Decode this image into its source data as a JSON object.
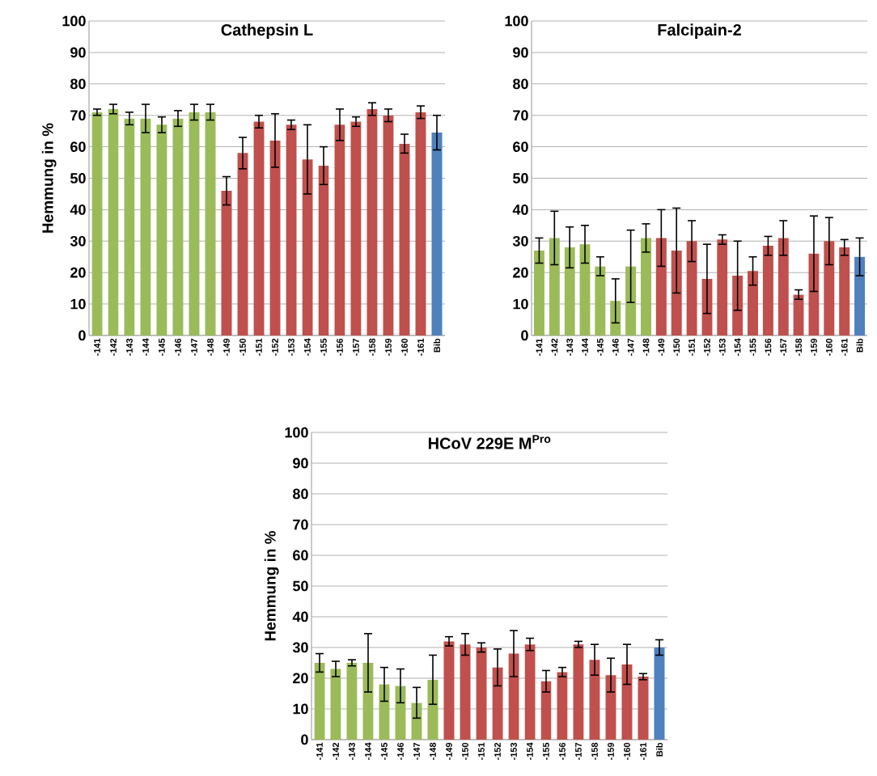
{
  "chart_data": [
    {
      "type": "bar",
      "title": "Cathepsin L",
      "ylabel": "Hemmung in %",
      "categories": [
        "-141",
        "-142",
        "-143",
        "-144",
        "-145",
        "-146",
        "-147",
        "-148",
        "-149",
        "-150",
        "-151",
        "-152",
        "-153",
        "-154",
        "-155",
        "-156",
        "-157",
        "-158",
        "-159",
        "-160",
        "-161",
        "Bib"
      ],
      "values": [
        71,
        72,
        69,
        69,
        67,
        69,
        71,
        71,
        46,
        58,
        68,
        62,
        67,
        56,
        54,
        67,
        68,
        72,
        70,
        61,
        71,
        64.5
      ],
      "errors": [
        1,
        1.5,
        2,
        4.5,
        2.5,
        2.5,
        2.5,
        2.5,
        4.5,
        5,
        2,
        8.5,
        1.5,
        11,
        6,
        5,
        1.5,
        2,
        2,
        3,
        2,
        5.5
      ],
      "colors": [
        "#9bbb59",
        "#9bbb59",
        "#9bbb59",
        "#9bbb59",
        "#9bbb59",
        "#9bbb59",
        "#9bbb59",
        "#9bbb59",
        "#c0504d",
        "#c0504d",
        "#c0504d",
        "#c0504d",
        "#c0504d",
        "#c0504d",
        "#c0504d",
        "#c0504d",
        "#c0504d",
        "#c0504d",
        "#c0504d",
        "#c0504d",
        "#c0504d",
        "#4f81bd"
      ],
      "ylim": [
        0,
        100
      ],
      "yticks": [
        0,
        10,
        20,
        30,
        40,
        50,
        60,
        70,
        80,
        90,
        100
      ],
      "grid": "y"
    },
    {
      "type": "bar",
      "title": "Falcipain-2",
      "categories": [
        "-141",
        "-142",
        "-143",
        "-144",
        "-145",
        "-146",
        "-147",
        "-148",
        "-149",
        "-150",
        "-151",
        "-152",
        "-153",
        "-154",
        "-155",
        "-156",
        "-157",
        "-158",
        "-159",
        "-160",
        "-161",
        "Bib"
      ],
      "values": [
        27,
        31,
        28,
        29,
        22,
        11,
        22,
        31,
        31,
        27,
        30,
        18,
        30.5,
        19,
        20.5,
        28.5,
        31,
        13,
        26,
        30,
        28,
        25
      ],
      "errors": [
        4,
        8.5,
        6.5,
        6,
        3,
        7,
        11.5,
        4.5,
        9,
        13.5,
        6.5,
        11,
        1.5,
        11,
        4.5,
        3,
        5.5,
        1.5,
        12,
        7.5,
        2.5,
        6
      ],
      "colors": [
        "#9bbb59",
        "#9bbb59",
        "#9bbb59",
        "#9bbb59",
        "#9bbb59",
        "#9bbb59",
        "#9bbb59",
        "#9bbb59",
        "#c0504d",
        "#c0504d",
        "#c0504d",
        "#c0504d",
        "#c0504d",
        "#c0504d",
        "#c0504d",
        "#c0504d",
        "#c0504d",
        "#c0504d",
        "#c0504d",
        "#c0504d",
        "#c0504d",
        "#4f81bd"
      ],
      "ylim": [
        0,
        100
      ],
      "yticks": [
        0,
        10,
        20,
        30,
        40,
        50,
        60,
        70,
        80,
        90,
        100
      ],
      "grid": "y"
    },
    {
      "type": "bar",
      "title": "HCoV 229E M$^{Pro}$",
      "ylabel": "Hemmung in %",
      "categories": [
        "-141",
        "-142",
        "-143",
        "-144",
        "-145",
        "-146",
        "-147",
        "-148",
        "-149",
        "-150",
        "-151",
        "-152",
        "-153",
        "-154",
        "-155",
        "-156",
        "-157",
        "-158",
        "-159",
        "-160",
        "-161",
        "Bib"
      ],
      "values": [
        25,
        23,
        25,
        25,
        18,
        17.5,
        12,
        19.5,
        32,
        31,
        30,
        23.5,
        28,
        31,
        19,
        22,
        31,
        26,
        21,
        24.5,
        20.5,
        30
      ],
      "errors": [
        3,
        2.5,
        1,
        9.5,
        5.5,
        5.5,
        5,
        8,
        1.5,
        3.5,
        1.5,
        6,
        7.5,
        2,
        3.5,
        1.5,
        1,
        5,
        5.5,
        6.5,
        1,
        2.5
      ],
      "colors": [
        "#9bbb59",
        "#9bbb59",
        "#9bbb59",
        "#9bbb59",
        "#9bbb59",
        "#9bbb59",
        "#9bbb59",
        "#9bbb59",
        "#c0504d",
        "#c0504d",
        "#c0504d",
        "#c0504d",
        "#c0504d",
        "#c0504d",
        "#c0504d",
        "#c0504d",
        "#c0504d",
        "#c0504d",
        "#c0504d",
        "#c0504d",
        "#c0504d",
        "#4f81bd"
      ],
      "ylim": [
        0,
        100
      ],
      "yticks": [
        0,
        10,
        20,
        30,
        40,
        50,
        60,
        70,
        80,
        90,
        100
      ],
      "grid": "y"
    }
  ]
}
